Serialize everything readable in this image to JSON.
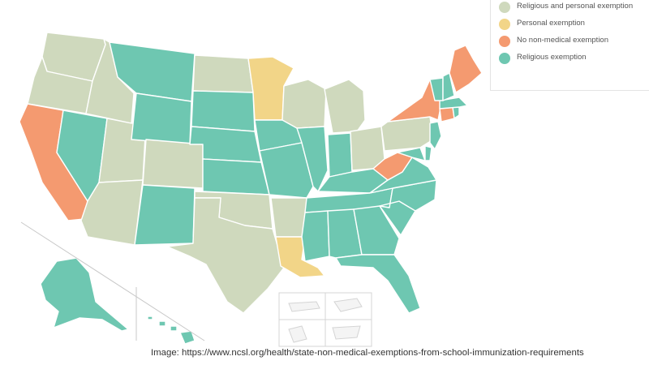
{
  "colors": {
    "religious_personal": "#cfd9bd",
    "personal": "#f2d588",
    "no_non_medical": "#f49a70",
    "religious": "#6ec7b1",
    "inset_frame": "#d4d4d4"
  },
  "legend": {
    "items": [
      {
        "label": "Religious and personal exemption",
        "category": "religious_personal"
      },
      {
        "label": "Personal exemption",
        "category": "personal"
      },
      {
        "label": "No non-medical exemption",
        "category": "no_non_medical"
      },
      {
        "label": "Religious exemption",
        "category": "religious"
      }
    ]
  },
  "states": [
    {
      "name": "Washington",
      "category": "religious_personal"
    },
    {
      "name": "Oregon",
      "category": "religious_personal"
    },
    {
      "name": "California",
      "category": "no_non_medical"
    },
    {
      "name": "Idaho",
      "category": "religious_personal"
    },
    {
      "name": "Nevada",
      "category": "religious"
    },
    {
      "name": "Utah",
      "category": "religious_personal"
    },
    {
      "name": "Arizona",
      "category": "religious_personal"
    },
    {
      "name": "Montana",
      "category": "religious"
    },
    {
      "name": "Wyoming",
      "category": "religious"
    },
    {
      "name": "Colorado",
      "category": "religious_personal"
    },
    {
      "name": "New Mexico",
      "category": "religious"
    },
    {
      "name": "North Dakota",
      "category": "religious_personal"
    },
    {
      "name": "South Dakota",
      "category": "religious"
    },
    {
      "name": "Nebraska",
      "category": "religious"
    },
    {
      "name": "Kansas",
      "category": "religious"
    },
    {
      "name": "Oklahoma",
      "category": "religious_personal"
    },
    {
      "name": "Texas",
      "category": "religious_personal"
    },
    {
      "name": "Minnesota",
      "category": "personal"
    },
    {
      "name": "Iowa",
      "category": "religious"
    },
    {
      "name": "Missouri",
      "category": "religious"
    },
    {
      "name": "Arkansas",
      "category": "religious_personal"
    },
    {
      "name": "Louisiana",
      "category": "personal"
    },
    {
      "name": "Wisconsin",
      "category": "religious_personal"
    },
    {
      "name": "Illinois",
      "category": "religious"
    },
    {
      "name": "Michigan",
      "category": "religious_personal"
    },
    {
      "name": "Indiana",
      "category": "religious"
    },
    {
      "name": "Ohio",
      "category": "religious_personal"
    },
    {
      "name": "Kentucky",
      "category": "religious"
    },
    {
      "name": "Tennessee",
      "category": "religious"
    },
    {
      "name": "Mississippi",
      "category": "religious"
    },
    {
      "name": "Alabama",
      "category": "religious"
    },
    {
      "name": "Georgia",
      "category": "religious"
    },
    {
      "name": "Florida",
      "category": "religious"
    },
    {
      "name": "South Carolina",
      "category": "religious"
    },
    {
      "name": "North Carolina",
      "category": "religious"
    },
    {
      "name": "Virginia",
      "category": "religious"
    },
    {
      "name": "West Virginia",
      "category": "no_non_medical"
    },
    {
      "name": "Pennsylvania",
      "category": "religious_personal"
    },
    {
      "name": "New York",
      "category": "no_non_medical"
    },
    {
      "name": "Maryland",
      "category": "religious"
    },
    {
      "name": "Delaware",
      "category": "religious"
    },
    {
      "name": "New Jersey",
      "category": "religious"
    },
    {
      "name": "Connecticut",
      "category": "no_non_medical"
    },
    {
      "name": "Rhode Island",
      "category": "religious"
    },
    {
      "name": "Massachusetts",
      "category": "religious"
    },
    {
      "name": "Vermont",
      "category": "religious"
    },
    {
      "name": "New Hampshire",
      "category": "religious"
    },
    {
      "name": "Maine",
      "category": "no_non_medical"
    },
    {
      "name": "Alaska",
      "category": "religious"
    },
    {
      "name": "Hawaii",
      "category": "religious"
    }
  ],
  "caption": "Image: https://www.ncsl.org/health/state-non-medical-exemptions-from-school-immunization-requirements"
}
